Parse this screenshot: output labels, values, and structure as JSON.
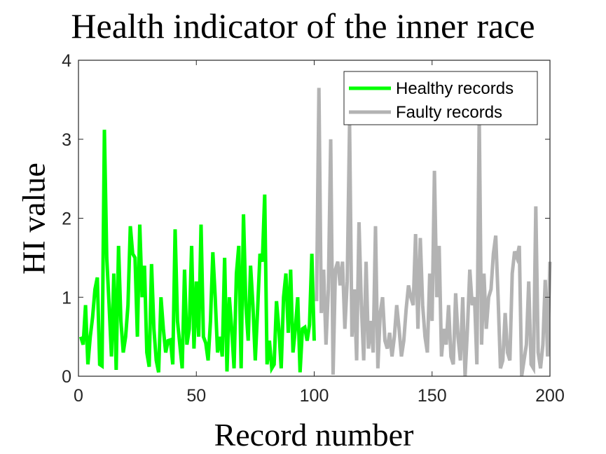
{
  "chart_data": {
    "type": "line",
    "title": "Health indicator of the inner race",
    "xlabel": "Record number",
    "ylabel": "HI value",
    "xlim": [
      0,
      200
    ],
    "ylim": [
      0,
      4
    ],
    "xticks": [
      0,
      50,
      100,
      150,
      200
    ],
    "yticks": [
      0,
      1,
      2,
      3,
      4
    ],
    "grid": false,
    "legend_position": "upper right",
    "series": [
      {
        "name": "Healthy records",
        "color": "#00ff00",
        "x_start": 1,
        "values": [
          0.5,
          0.4,
          0.9,
          0.15,
          0.5,
          0.75,
          1.1,
          1.25,
          0.15,
          0.13,
          3.12,
          1.5,
          0.9,
          0.25,
          1.3,
          0.08,
          1.65,
          0.7,
          0.3,
          0.5,
          0.9,
          1.9,
          1.55,
          1.5,
          0.5,
          1.92,
          1.0,
          1.4,
          0.3,
          0.12,
          1.42,
          0.6,
          0.2,
          0.05,
          1.0,
          0.6,
          0.3,
          0.45,
          0.46,
          0.15,
          1.86,
          0.7,
          0.4,
          0.1,
          1.35,
          0.4,
          0.6,
          1.65,
          0.35,
          1.2,
          0.5,
          1.92,
          0.5,
          0.42,
          0.2,
          0.7,
          1.57,
          1.0,
          0.3,
          0.5,
          0.25,
          1.5,
          0.06,
          1.0,
          0.6,
          0.1,
          1.3,
          1.65,
          0.1,
          2.05,
          0.9,
          0.45,
          1.4,
          0.9,
          0.2,
          0.85,
          1.55,
          1.45,
          2.3,
          0.15,
          0.45,
          0.1,
          0.15,
          0.95,
          0.6,
          0.1,
          1.0,
          1.3,
          0.55,
          1.35,
          0.3,
          0.6,
          1.0,
          0.05,
          0.6,
          0.62,
          0.45,
          0.65,
          1.55,
          0.45
        ]
      },
      {
        "name": "Faulty records",
        "color": "#b3b3b3",
        "x_start": 101,
        "values": [
          0.95,
          3.65,
          0.8,
          1.35,
          0.4,
          1.1,
          3.0,
          0.02,
          1.35,
          1.45,
          1.15,
          1.45,
          0.6,
          1.2,
          3.2,
          0.5,
          1.1,
          0.2,
          1.95,
          0.9,
          0.2,
          1.45,
          0.35,
          0.7,
          0.3,
          1.9,
          0.1,
          0.8,
          1.0,
          0.45,
          0.35,
          0.55,
          0.25,
          0.5,
          0.9,
          0.6,
          0.25,
          0.45,
          0.85,
          1.15,
          1.0,
          0.9,
          1.8,
          0.6,
          1.75,
          0.9,
          0.5,
          0.3,
          1.3,
          0.7,
          2.6,
          1.0,
          1.65,
          0.25,
          0.6,
          0.4,
          0.9,
          0.25,
          0.15,
          1.05,
          0.5,
          0.2,
          1.0,
          0.0,
          0.6,
          1.35,
          0.9,
          1.0,
          0.15,
          3.3,
          0.4,
          1.3,
          0.6,
          1.0,
          1.1,
          1.55,
          1.78,
          1.0,
          0.1,
          0.2,
          0.8,
          0.3,
          0.2,
          1.3,
          1.58,
          1.5,
          1.65,
          0.0,
          0.2,
          0.4,
          1.2,
          0.15,
          0.1,
          2.15,
          0.3,
          0.1,
          0.4,
          1.22,
          0.25,
          1.45
        ]
      }
    ]
  }
}
